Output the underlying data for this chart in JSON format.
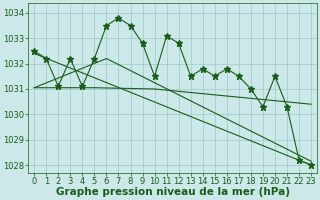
{
  "xlabel": "Graphe pression niveau de la mer (hPa)",
  "hours": [
    0,
    1,
    2,
    3,
    4,
    5,
    6,
    7,
    8,
    9,
    10,
    11,
    12,
    13,
    14,
    15,
    16,
    17,
    18,
    19,
    20,
    21,
    22,
    23
  ],
  "pressure": [
    1032.5,
    1032.2,
    1031.1,
    1032.2,
    1031.1,
    1032.2,
    1033.5,
    1033.8,
    1033.5,
    1032.8,
    1031.5,
    1033.1,
    1032.8,
    1031.5,
    1031.8,
    1031.5,
    1031.8,
    1031.5,
    1031.0,
    1030.3,
    1031.5,
    1030.3,
    1028.2,
    1028.0
  ],
  "line1_x": [
    0,
    23
  ],
  "line1_y": [
    1032.4,
    1028.0
  ],
  "line2_x": [
    0,
    5,
    10,
    23
  ],
  "line2_y": [
    1031.05,
    1031.05,
    1031.0,
    1030.4
  ],
  "line3_x": [
    0,
    6,
    23
  ],
  "line3_y": [
    1031.05,
    1032.2,
    1028.15
  ],
  "ylim": [
    1027.7,
    1034.4
  ],
  "xlim": [
    -0.5,
    23.5
  ],
  "bg_color": "#cce8e8",
  "line_color": "#1a5c1a",
  "grid_color": "#a0c8c8",
  "marker": "*",
  "marker_size": 4.5,
  "tick_fontsize": 6,
  "label_fontsize": 7.5
}
